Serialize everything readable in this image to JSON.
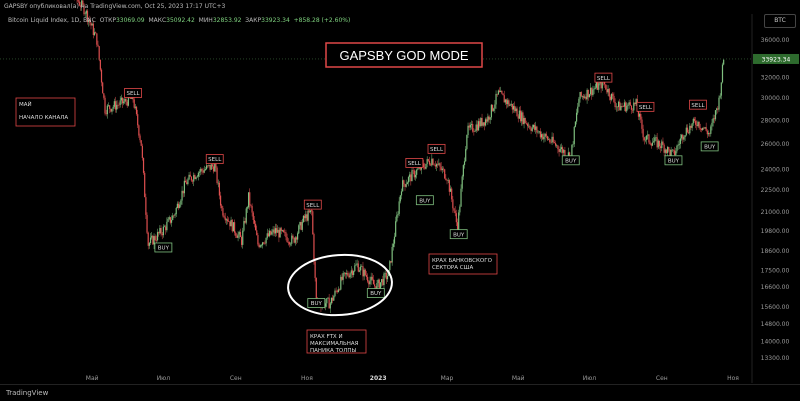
{
  "header": {
    "published": "GAPSBY опубликовал(а) на TradingView.com, Oct 25, 2023 17:17 UTC+3",
    "symbol": "Bitcoin Liquid Index, 1D, BNC",
    "open_label": "ОТКР",
    "open_value": "33069.09",
    "high_label": "МАКС",
    "high_value": "35092.42",
    "low_label": "МИН",
    "low_value": "32853.92",
    "close_label": "ЗАКР",
    "close_value": "33923.34",
    "change": "+858.28 (+2.60%)",
    "currency": "BTC"
  },
  "footer": {
    "logo": "TradingView"
  },
  "colors": {
    "up": "#7fbf7f",
    "down": "#e05050",
    "title_border": "#e04848",
    "annotation_border": "#e04848",
    "buy_border": "#7fbf7f",
    "circle": "#ffffff",
    "price_line": "#4d8a4d",
    "price_badge_bg": "#2e6b2e"
  },
  "chart_data": {
    "type": "candlestick",
    "title": "GAPSBY GOD MODE",
    "y_ticks": [
      "36000.00",
      "34000.00",
      "32000.00",
      "30000.00",
      "28000.00",
      "26000.00",
      "24000.00",
      "22500.00",
      "21000.00",
      "19800.00",
      "18600.00",
      "17500.00",
      "16600.00",
      "15600.00",
      "14800.00",
      "14000.00",
      "13300.00"
    ],
    "y_range_label": "log",
    "current_price": "33923.34",
    "x_ticks": [
      "Май",
      "Июл",
      "Сен",
      "Ноя",
      "2023",
      "Мар",
      "Май",
      "Июл",
      "Сен",
      "Ноя"
    ],
    "x_range": [
      "2022-04",
      "2023-11"
    ],
    "series": [
      {
        "x": "2022-03-28",
        "y": 47000
      },
      {
        "x": "2022-04-10",
        "y": 42500
      },
      {
        "x": "2022-04-25",
        "y": 39500
      },
      {
        "x": "2022-05-05",
        "y": 36000
      },
      {
        "x": "2022-05-12",
        "y": 29000
      },
      {
        "x": "2022-05-25",
        "y": 29500
      },
      {
        "x": "2022-06-05",
        "y": 30000
      },
      {
        "x": "2022-06-12",
        "y": 26000
      },
      {
        "x": "2022-06-18",
        "y": 19000
      },
      {
        "x": "2022-06-30",
        "y": 19800
      },
      {
        "x": "2022-07-10",
        "y": 20800
      },
      {
        "x": "2022-07-20",
        "y": 23000
      },
      {
        "x": "2022-07-30",
        "y": 23800
      },
      {
        "x": "2022-08-14",
        "y": 24300
      },
      {
        "x": "2022-08-20",
        "y": 21200
      },
      {
        "x": "2022-09-06",
        "y": 19200
      },
      {
        "x": "2022-09-12",
        "y": 22000
      },
      {
        "x": "2022-09-20",
        "y": 19000
      },
      {
        "x": "2022-10-05",
        "y": 19800
      },
      {
        "x": "2022-10-20",
        "y": 19200
      },
      {
        "x": "2022-10-30",
        "y": 20600
      },
      {
        "x": "2022-11-05",
        "y": 21000
      },
      {
        "x": "2022-11-09",
        "y": 15800
      },
      {
        "x": "2022-11-21",
        "y": 15800
      },
      {
        "x": "2022-12-01",
        "y": 17000
      },
      {
        "x": "2022-12-14",
        "y": 17800
      },
      {
        "x": "2022-12-30",
        "y": 16600
      },
      {
        "x": "2023-01-10",
        "y": 17300
      },
      {
        "x": "2023-01-21",
        "y": 22800
      },
      {
        "x": "2023-02-02",
        "y": 23800
      },
      {
        "x": "2023-02-16",
        "y": 24800
      },
      {
        "x": "2023-03-01",
        "y": 23500
      },
      {
        "x": "2023-03-10",
        "y": 20000
      },
      {
        "x": "2023-03-18",
        "y": 27000
      },
      {
        "x": "2023-04-05",
        "y": 28200
      },
      {
        "x": "2023-04-14",
        "y": 30400
      },
      {
        "x": "2023-04-26",
        "y": 29200
      },
      {
        "x": "2023-05-10",
        "y": 27600
      },
      {
        "x": "2023-05-25",
        "y": 26500
      },
      {
        "x": "2023-06-15",
        "y": 25000
      },
      {
        "x": "2023-06-22",
        "y": 30000
      },
      {
        "x": "2023-07-13",
        "y": 31500
      },
      {
        "x": "2023-07-25",
        "y": 29200
      },
      {
        "x": "2023-08-10",
        "y": 29400
      },
      {
        "x": "2023-08-17",
        "y": 26500
      },
      {
        "x": "2023-09-01",
        "y": 25900
      },
      {
        "x": "2023-09-11",
        "y": 25100
      },
      {
        "x": "2023-09-20",
        "y": 27000
      },
      {
        "x": "2023-10-01",
        "y": 27900
      },
      {
        "x": "2023-10-12",
        "y": 26800
      },
      {
        "x": "2023-10-20",
        "y": 29800
      },
      {
        "x": "2023-10-24",
        "y": 33900
      }
    ],
    "signals": [
      {
        "label": "SELL",
        "x": "2022-06-05",
        "y": 30500
      },
      {
        "label": "SELL",
        "x": "2022-08-14",
        "y": 24800
      },
      {
        "label": "BUY",
        "x": "2022-07-01",
        "y": 18800
      },
      {
        "label": "SELL",
        "x": "2022-11-06",
        "y": 21500
      },
      {
        "label": "BUY",
        "x": "2022-11-09",
        "y": 15800
      },
      {
        "label": "BUY",
        "x": "2022-12-30",
        "y": 16300
      },
      {
        "label": "SELL",
        "x": "2023-02-01",
        "y": 24500
      },
      {
        "label": "SELL",
        "x": "2023-02-20",
        "y": 25600
      },
      {
        "label": "BUY",
        "x": "2023-02-10",
        "y": 21800
      },
      {
        "label": "BUY",
        "x": "2023-03-11",
        "y": 19600
      },
      {
        "label": "BUY",
        "x": "2023-06-15",
        "y": 24700
      },
      {
        "label": "SELL",
        "x": "2023-07-13",
        "y": 32000
      },
      {
        "label": "SELL",
        "x": "2023-08-18",
        "y": 29200
      },
      {
        "label": "BUY",
        "x": "2023-09-11",
        "y": 24700
      },
      {
        "label": "SELL",
        "x": "2023-10-02",
        "y": 29400
      },
      {
        "label": "BUY",
        "x": "2023-10-12",
        "y": 25800
      }
    ],
    "annotations": [
      {
        "lines": [
          "МАЙ",
          "НАЧАЛО КАНАЛА"
        ]
      },
      {
        "lines": [
          "КРАХ FTX И",
          "МАКСИМАЛЬНАЯ",
          "ПАНИКА ТОЛПЫ"
        ]
      },
      {
        "lines": [
          "КРАХ БАНКОВСКОГО",
          "СЕКТОРА США"
        ]
      }
    ]
  }
}
